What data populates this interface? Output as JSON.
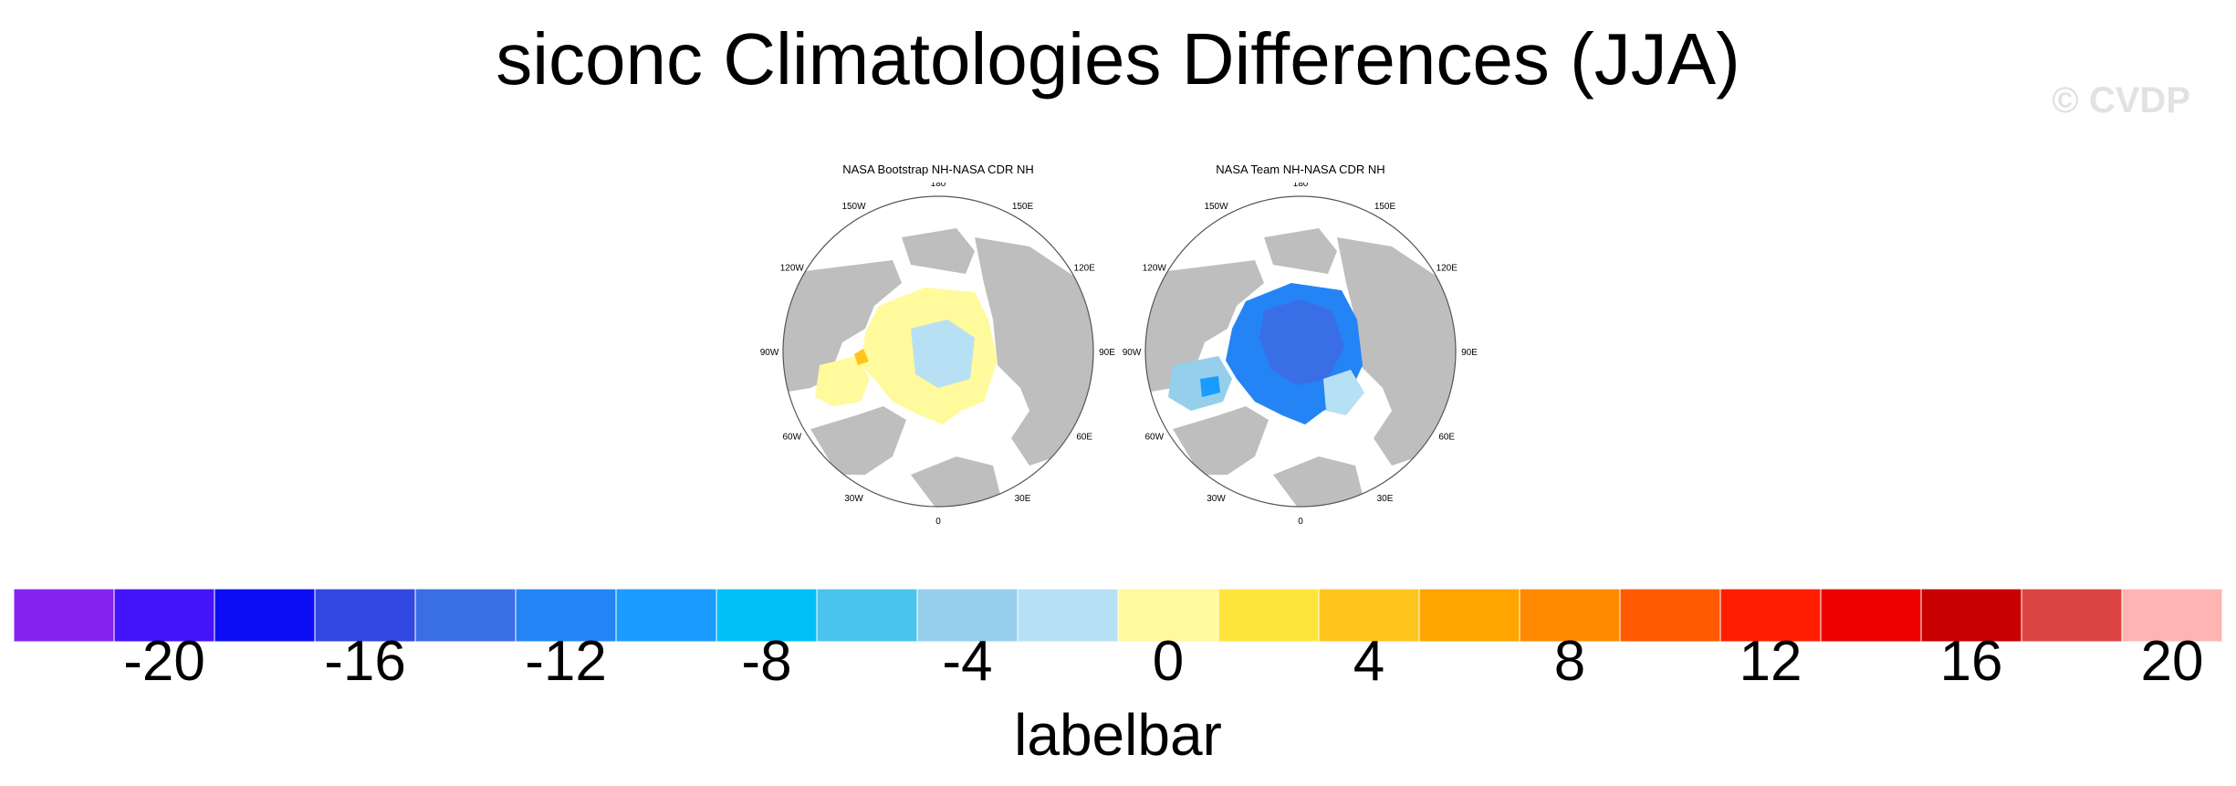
{
  "chart_data": {
    "type": "heatmap",
    "title": "siconc Climatologies Differences (JJA)",
    "watermark": "© CVDP",
    "panels": [
      {
        "title": "NASA Bootstrap NH-NASA CDR NH",
        "projection": "north-polar-stereographic",
        "dominant_range": [
          0,
          4
        ],
        "note": "mostly small positive (yellow) differences; central Arctic near 0 (light blue)"
      },
      {
        "title": "NASA Team NH-NASA CDR NH",
        "projection": "north-polar-stereographic",
        "dominant_range": [
          -20,
          -4
        ],
        "note": "mostly negative (blue) differences across Arctic ice pack"
      }
    ],
    "longitude_labels": [
      "180",
      "150E",
      "120E",
      "90E",
      "60E",
      "30E",
      "0",
      "30W",
      "60W",
      "90W",
      "120W",
      "150W"
    ],
    "colorbar": {
      "label": "labelbar",
      "levels": [
        -22,
        -20,
        -18,
        -16,
        -14,
        -12,
        -10,
        -8,
        -6,
        -4,
        -2,
        0,
        2,
        4,
        6,
        8,
        10,
        12,
        14,
        16,
        18,
        20,
        22
      ],
      "tick_labels": [
        "-20",
        "-16",
        "-12",
        "-8",
        "-4",
        "0",
        "4",
        "8",
        "12",
        "16",
        "20"
      ],
      "colors": [
        "#8721f0",
        "#4513f7",
        "#0d0df5",
        "#3247e0",
        "#3a6ee6",
        "#2484f5",
        "#1a9bff",
        "#03bff8",
        "#4ac4ef",
        "#95cfec",
        "#b8e0f4",
        "#fffa9c",
        "#ffe43c",
        "#ffc51c",
        "#ffa500",
        "#ff8a00",
        "#ff5a00",
        "#ff1e00",
        "#ee0000",
        "#c80000",
        "#dc4444",
        "#ffb4b4"
      ]
    }
  }
}
